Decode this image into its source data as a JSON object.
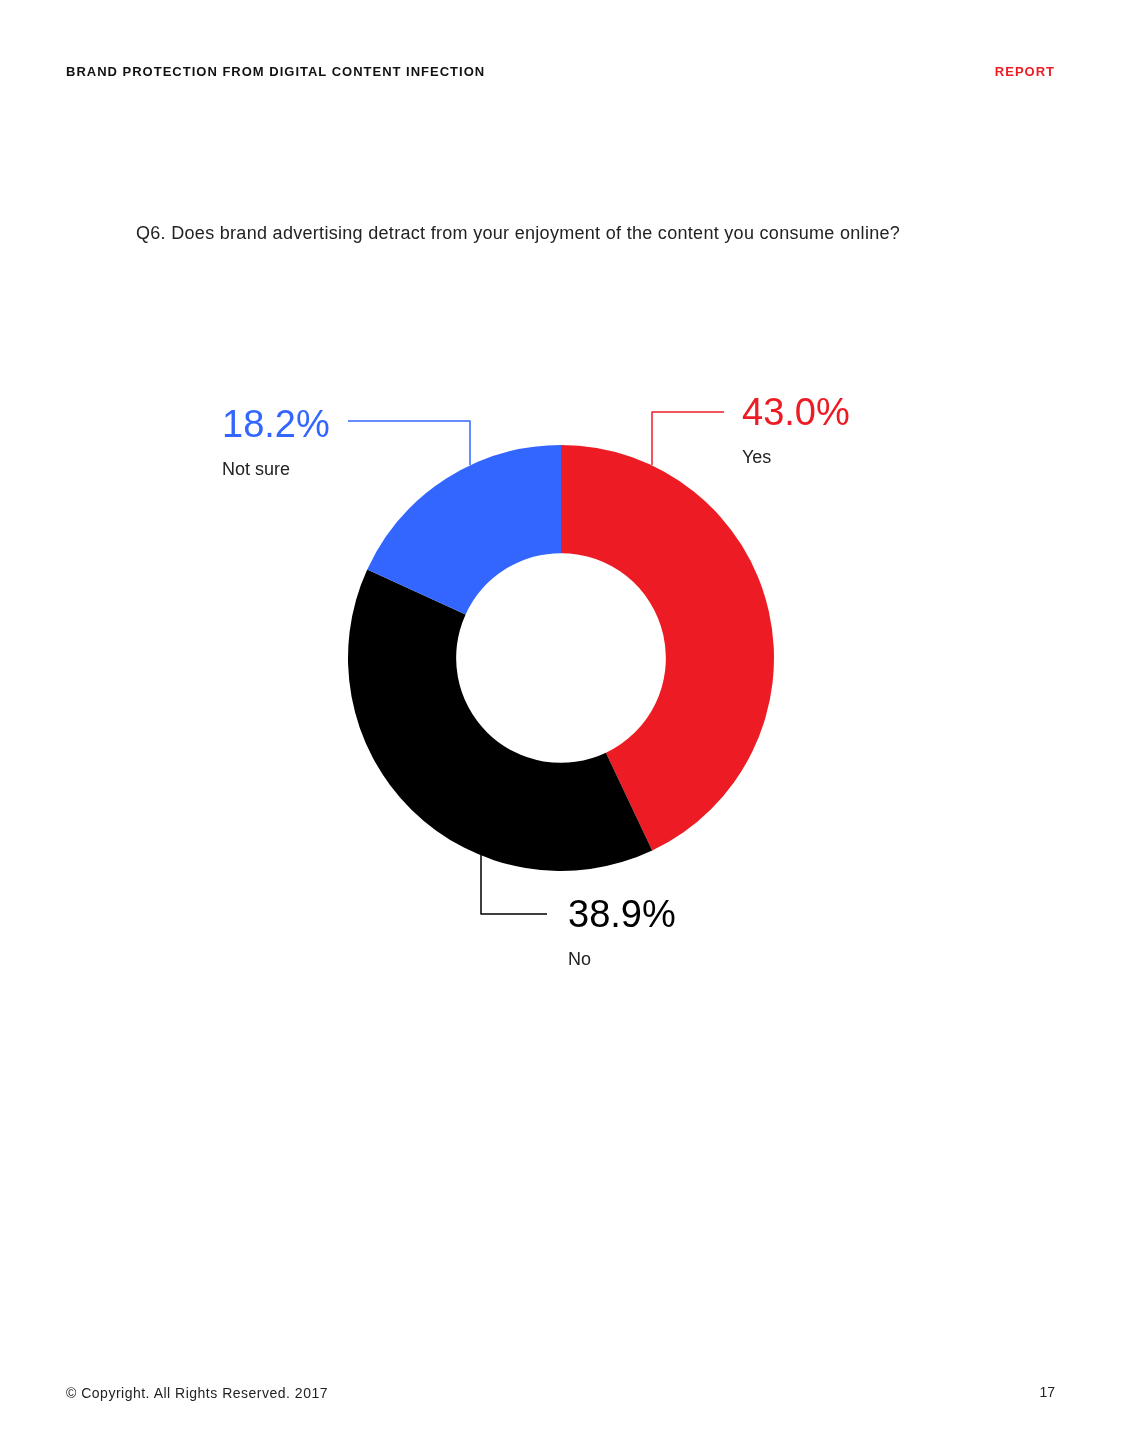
{
  "chart_data": {
    "type": "donut",
    "title": "Q6. Does brand advertising detract from your enjoyment of the content you consume online?",
    "categories": [
      "Yes",
      "No",
      "Not sure"
    ],
    "values": [
      43.0,
      38.9,
      18.2
    ],
    "value_labels": [
      "43.0%",
      "38.9%",
      "18.2%"
    ],
    "colors": [
      "#ed1c24",
      "#000000",
      "#3366ff"
    ],
    "legend": false,
    "annotations": [
      "BRAND PROTECTION FROM DIGITAL CONTENT INFECTION",
      "REPORT",
      "© Copyright. All Rights Reserved. 2017",
      "17"
    ]
  }
}
